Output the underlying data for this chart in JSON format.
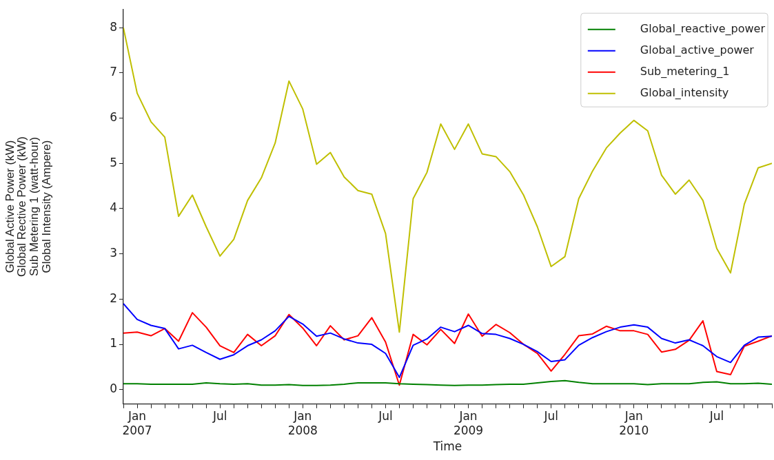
{
  "chart_data": {
    "type": "line",
    "xlabel": "Time",
    "ylabel": "Global Active Power (kW)\nGlobal Rective Power (kW)\nSub Metering 1 (watt-hour)\nGlobal Intensity (Ampere)",
    "x": [
      "2006-12",
      "2007-01",
      "2007-02",
      "2007-03",
      "2007-04",
      "2007-05",
      "2007-06",
      "2007-07",
      "2007-08",
      "2007-09",
      "2007-10",
      "2007-11",
      "2007-12",
      "2008-01",
      "2008-02",
      "2008-03",
      "2008-04",
      "2008-05",
      "2008-06",
      "2008-07",
      "2008-08",
      "2008-09",
      "2008-10",
      "2008-11",
      "2008-12",
      "2009-01",
      "2009-02",
      "2009-03",
      "2009-04",
      "2009-05",
      "2009-06",
      "2009-07",
      "2009-08",
      "2009-09",
      "2009-10",
      "2009-11",
      "2009-12",
      "2010-01",
      "2010-02",
      "2010-03",
      "2010-04",
      "2010-05",
      "2010-06",
      "2010-07",
      "2010-08",
      "2010-09",
      "2010-10",
      "2010-11"
    ],
    "series": [
      {
        "name": "Global_reactive_power",
        "color": "#008000",
        "values": [
          0.13,
          0.13,
          0.12,
          0.12,
          0.12,
          0.12,
          0.15,
          0.13,
          0.12,
          0.13,
          0.1,
          0.1,
          0.11,
          0.09,
          0.09,
          0.1,
          0.12,
          0.15,
          0.15,
          0.15,
          0.13,
          0.12,
          0.11,
          0.1,
          0.09,
          0.1,
          0.1,
          0.11,
          0.12,
          0.12,
          0.15,
          0.18,
          0.2,
          0.16,
          0.13,
          0.13,
          0.13,
          0.13,
          0.11,
          0.13,
          0.13,
          0.13,
          0.16,
          0.17,
          0.13,
          0.13,
          0.14,
          0.12
        ]
      },
      {
        "name": "Global_active_power",
        "color": "#0000ff",
        "values": [
          1.9,
          1.55,
          1.42,
          1.35,
          0.9,
          0.98,
          0.82,
          0.67,
          0.77,
          0.97,
          1.1,
          1.3,
          1.62,
          1.45,
          1.18,
          1.25,
          1.12,
          1.03,
          1.0,
          0.8,
          0.27,
          0.98,
          1.12,
          1.38,
          1.28,
          1.42,
          1.24,
          1.22,
          1.13,
          1.0,
          0.84,
          0.62,
          0.66,
          0.98,
          1.15,
          1.28,
          1.38,
          1.43,
          1.38,
          1.13,
          1.03,
          1.1,
          0.97,
          0.73,
          0.6,
          0.98,
          1.16,
          1.18
        ]
      },
      {
        "name": "Sub_metering_1",
        "color": "#ff0000",
        "values": [
          1.25,
          1.27,
          1.19,
          1.35,
          1.07,
          1.7,
          1.38,
          0.97,
          0.82,
          1.22,
          0.97,
          1.19,
          1.66,
          1.36,
          0.97,
          1.41,
          1.1,
          1.19,
          1.59,
          1.05,
          0.1,
          1.22,
          0.99,
          1.33,
          1.02,
          1.67,
          1.18,
          1.44,
          1.26,
          1.0,
          0.8,
          0.41,
          0.78,
          1.19,
          1.23,
          1.4,
          1.3,
          1.3,
          1.22,
          0.83,
          0.89,
          1.09,
          1.52,
          0.4,
          0.33,
          0.96,
          1.07,
          1.19
        ]
      },
      {
        "name": "Global_intensity",
        "color": "#bfbf00",
        "values": [
          8.0,
          6.55,
          5.92,
          5.58,
          3.83,
          4.3,
          3.6,
          2.95,
          3.32,
          4.18,
          4.68,
          5.45,
          6.82,
          6.2,
          4.98,
          5.24,
          4.7,
          4.4,
          4.32,
          3.45,
          1.27,
          4.22,
          4.8,
          5.87,
          5.31,
          5.87,
          5.21,
          5.15,
          4.82,
          4.3,
          3.6,
          2.72,
          2.94,
          4.22,
          4.83,
          5.34,
          5.67,
          5.95,
          5.72,
          4.74,
          4.32,
          4.63,
          4.18,
          3.12,
          2.58,
          4.1,
          4.9,
          5.0
        ]
      }
    ],
    "xlim": [
      "2006-12",
      "2010-11"
    ],
    "xticks": [
      {
        "value": "2006-12",
        "label": null
      },
      {
        "value": "2007-01",
        "label": "Jan\n2007"
      },
      {
        "value": "2007-02",
        "label": null
      },
      {
        "value": "2007-03",
        "label": null
      },
      {
        "value": "2007-04",
        "label": null
      },
      {
        "value": "2007-05",
        "label": null
      },
      {
        "value": "2007-06",
        "label": null
      },
      {
        "value": "2007-07",
        "label": "Jul"
      },
      {
        "value": "2007-08",
        "label": null
      },
      {
        "value": "2007-09",
        "label": null
      },
      {
        "value": "2007-10",
        "label": null
      },
      {
        "value": "2007-11",
        "label": null
      },
      {
        "value": "2007-12",
        "label": null
      },
      {
        "value": "2008-01",
        "label": "Jan\n2008"
      },
      {
        "value": "2008-02",
        "label": null
      },
      {
        "value": "2008-03",
        "label": null
      },
      {
        "value": "2008-04",
        "label": null
      },
      {
        "value": "2008-05",
        "label": null
      },
      {
        "value": "2008-06",
        "label": null
      },
      {
        "value": "2008-07",
        "label": "Jul"
      },
      {
        "value": "2008-08",
        "label": null
      },
      {
        "value": "2008-09",
        "label": null
      },
      {
        "value": "2008-10",
        "label": null
      },
      {
        "value": "2008-11",
        "label": null
      },
      {
        "value": "2008-12",
        "label": null
      },
      {
        "value": "2009-01",
        "label": "Jan\n2009"
      },
      {
        "value": "2009-02",
        "label": null
      },
      {
        "value": "2009-03",
        "label": null
      },
      {
        "value": "2009-04",
        "label": null
      },
      {
        "value": "2009-05",
        "label": null
      },
      {
        "value": "2009-06",
        "label": null
      },
      {
        "value": "2009-07",
        "label": "Jul"
      },
      {
        "value": "2009-08",
        "label": null
      },
      {
        "value": "2009-09",
        "label": null
      },
      {
        "value": "2009-10",
        "label": null
      },
      {
        "value": "2009-11",
        "label": null
      },
      {
        "value": "2009-12",
        "label": null
      },
      {
        "value": "2010-01",
        "label": "Jan\n2010"
      },
      {
        "value": "2010-02",
        "label": null
      },
      {
        "value": "2010-03",
        "label": null
      },
      {
        "value": "2010-04",
        "label": null
      },
      {
        "value": "2010-05",
        "label": null
      },
      {
        "value": "2010-06",
        "label": null
      },
      {
        "value": "2010-07",
        "label": "Jul"
      },
      {
        "value": "2010-08",
        "label": null
      },
      {
        "value": "2010-09",
        "label": null
      },
      {
        "value": "2010-10",
        "label": null
      },
      {
        "value": "2010-11",
        "label": null
      }
    ],
    "ylim": [
      -0.32,
      8.41
    ],
    "yticks": [
      0,
      1,
      2,
      3,
      4,
      5,
      6,
      7,
      8
    ],
    "grid": false,
    "legend": "top right",
    "marker": "none",
    "line_style": "solid"
  }
}
